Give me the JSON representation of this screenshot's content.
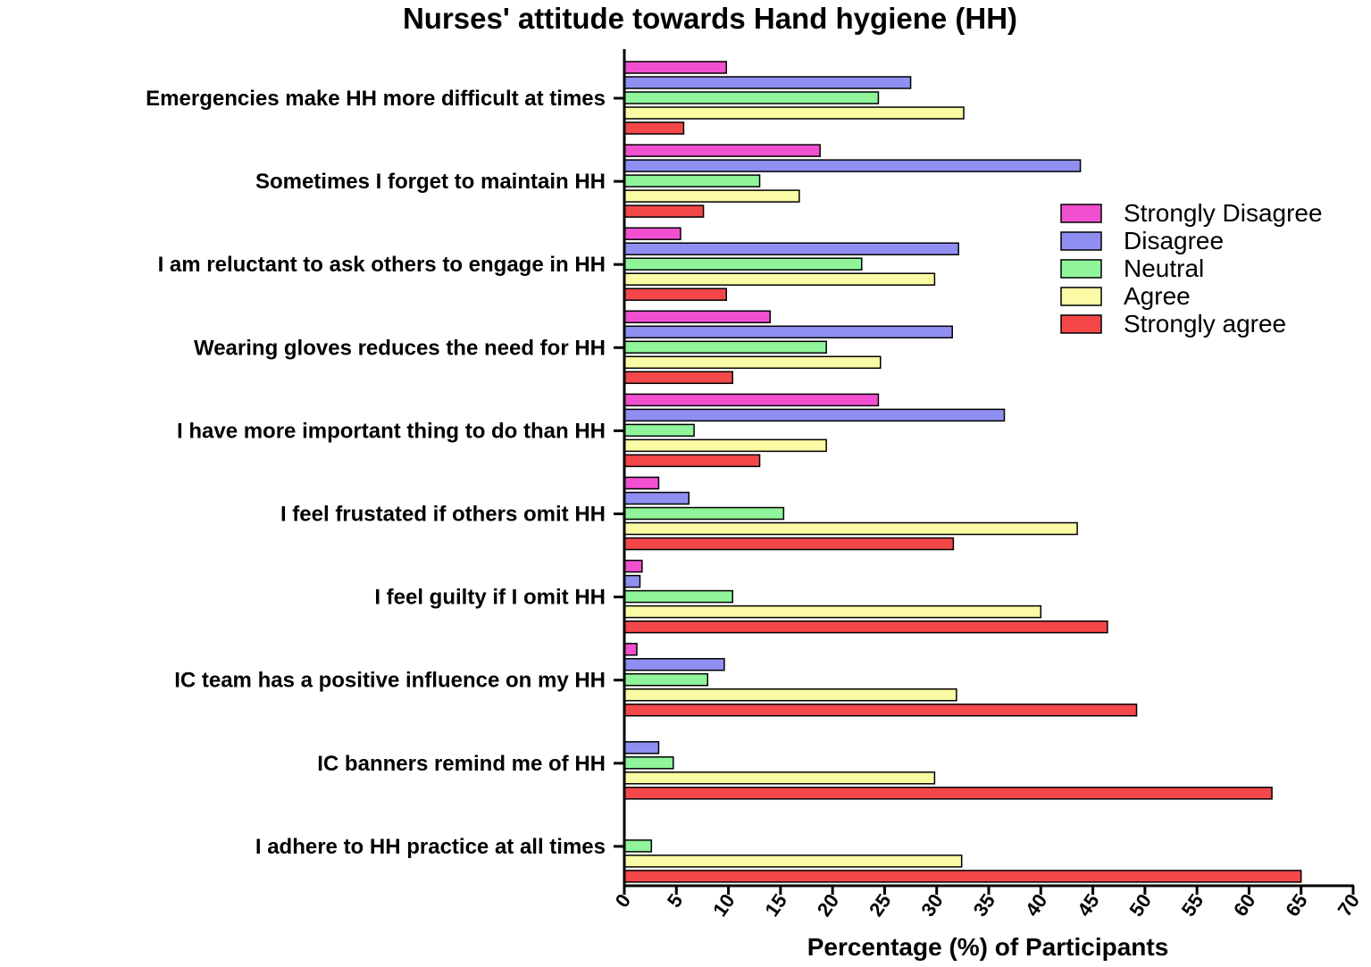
{
  "chart_data": {
    "type": "bar",
    "orientation": "horizontal",
    "title": "Nurses' attitude towards Hand hygiene (HH)",
    "xlabel": "Percentage (%) of Participants",
    "ylabel": "",
    "xlim": [
      0,
      70
    ],
    "xticks": [
      0,
      5,
      10,
      15,
      20,
      25,
      30,
      35,
      40,
      45,
      50,
      55,
      60,
      65,
      70
    ],
    "legend_position": "right",
    "grid": false,
    "categories": [
      "Emergencies make HH more difficult at times",
      "Sometimes I forget to maintain HH",
      "I am reluctant to ask others to engage in HH",
      "Wearing gloves reduces the need for HH",
      "I have more important thing to do than HH",
      "I feel frustated if others omit HH",
      "I feel guilty if I omit HH",
      "IC team has a positive influence on my HH",
      "IC banners remind me of HH",
      "I adhere to HH practice at all times"
    ],
    "series": [
      {
        "name": "Strongly Disagree",
        "color": "#f24fd0",
        "values": [
          9.8,
          18.8,
          5.4,
          14.0,
          24.4,
          3.3,
          1.7,
          1.2,
          0,
          0
        ]
      },
      {
        "name": "Disagree",
        "color": "#8f8ff2",
        "values": [
          27.5,
          43.8,
          32.1,
          31.5,
          36.5,
          6.2,
          1.5,
          9.6,
          3.3,
          0
        ]
      },
      {
        "name": "Neutral",
        "color": "#90f59a",
        "values": [
          24.4,
          13.0,
          22.8,
          19.4,
          6.7,
          15.3,
          10.4,
          8.0,
          4.7,
          2.6
        ]
      },
      {
        "name": "Agree",
        "color": "#fbfba5",
        "values": [
          32.6,
          16.8,
          29.8,
          24.6,
          19.4,
          43.5,
          40.0,
          31.9,
          29.8,
          32.4
        ]
      },
      {
        "name": "Strongly agree",
        "color": "#f4474a",
        "values": [
          5.7,
          7.6,
          9.8,
          10.4,
          13.0,
          31.6,
          46.4,
          49.2,
          62.2,
          65.0
        ]
      }
    ]
  }
}
